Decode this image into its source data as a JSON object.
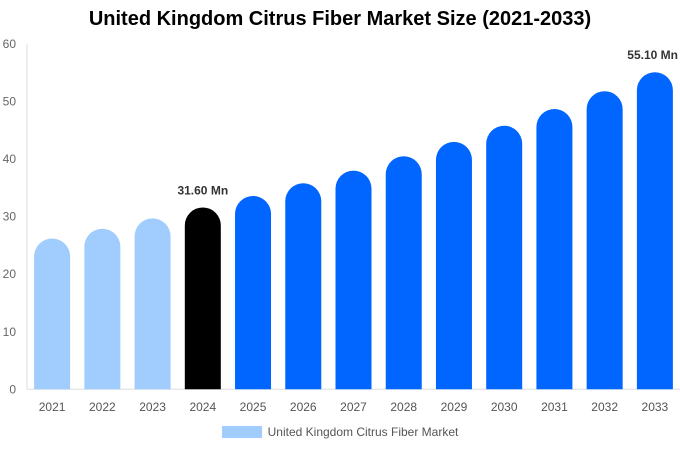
{
  "chart_data": {
    "type": "bar",
    "title": "United Kingdom Citrus Fiber Market Size (2021-2033)",
    "xlabel": "",
    "ylabel": "",
    "ylim": [
      0,
      60
    ],
    "yticks": [
      0,
      10,
      20,
      30,
      40,
      50,
      60
    ],
    "grid": false,
    "legend_placement": "bottom",
    "categories": [
      "2021",
      "2022",
      "2023",
      "2024",
      "2025",
      "2026",
      "2027",
      "2028",
      "2029",
      "2030",
      "2031",
      "2032",
      "2033"
    ],
    "series": [
      {
        "name": "United Kingdom Citrus Fiber Market",
        "values": [
          26.2,
          27.9,
          29.7,
          31.6,
          33.6,
          35.8,
          38.0,
          40.5,
          43.0,
          45.8,
          48.7,
          51.8,
          55.1
        ]
      }
    ],
    "bar_colors": [
      "#a0cdfd",
      "#a0cdfd",
      "#a0cdfd",
      "#000000",
      "#0066ff",
      "#0066ff",
      "#0066ff",
      "#0066ff",
      "#0066ff",
      "#0066ff",
      "#0066ff",
      "#0066ff",
      "#0066ff"
    ],
    "legend_color": "#a0cdfd",
    "data_labels": [
      {
        "category": "2024",
        "text": "31.60 Mn"
      },
      {
        "category": "2033",
        "text": "55.10 Mn"
      }
    ]
  }
}
